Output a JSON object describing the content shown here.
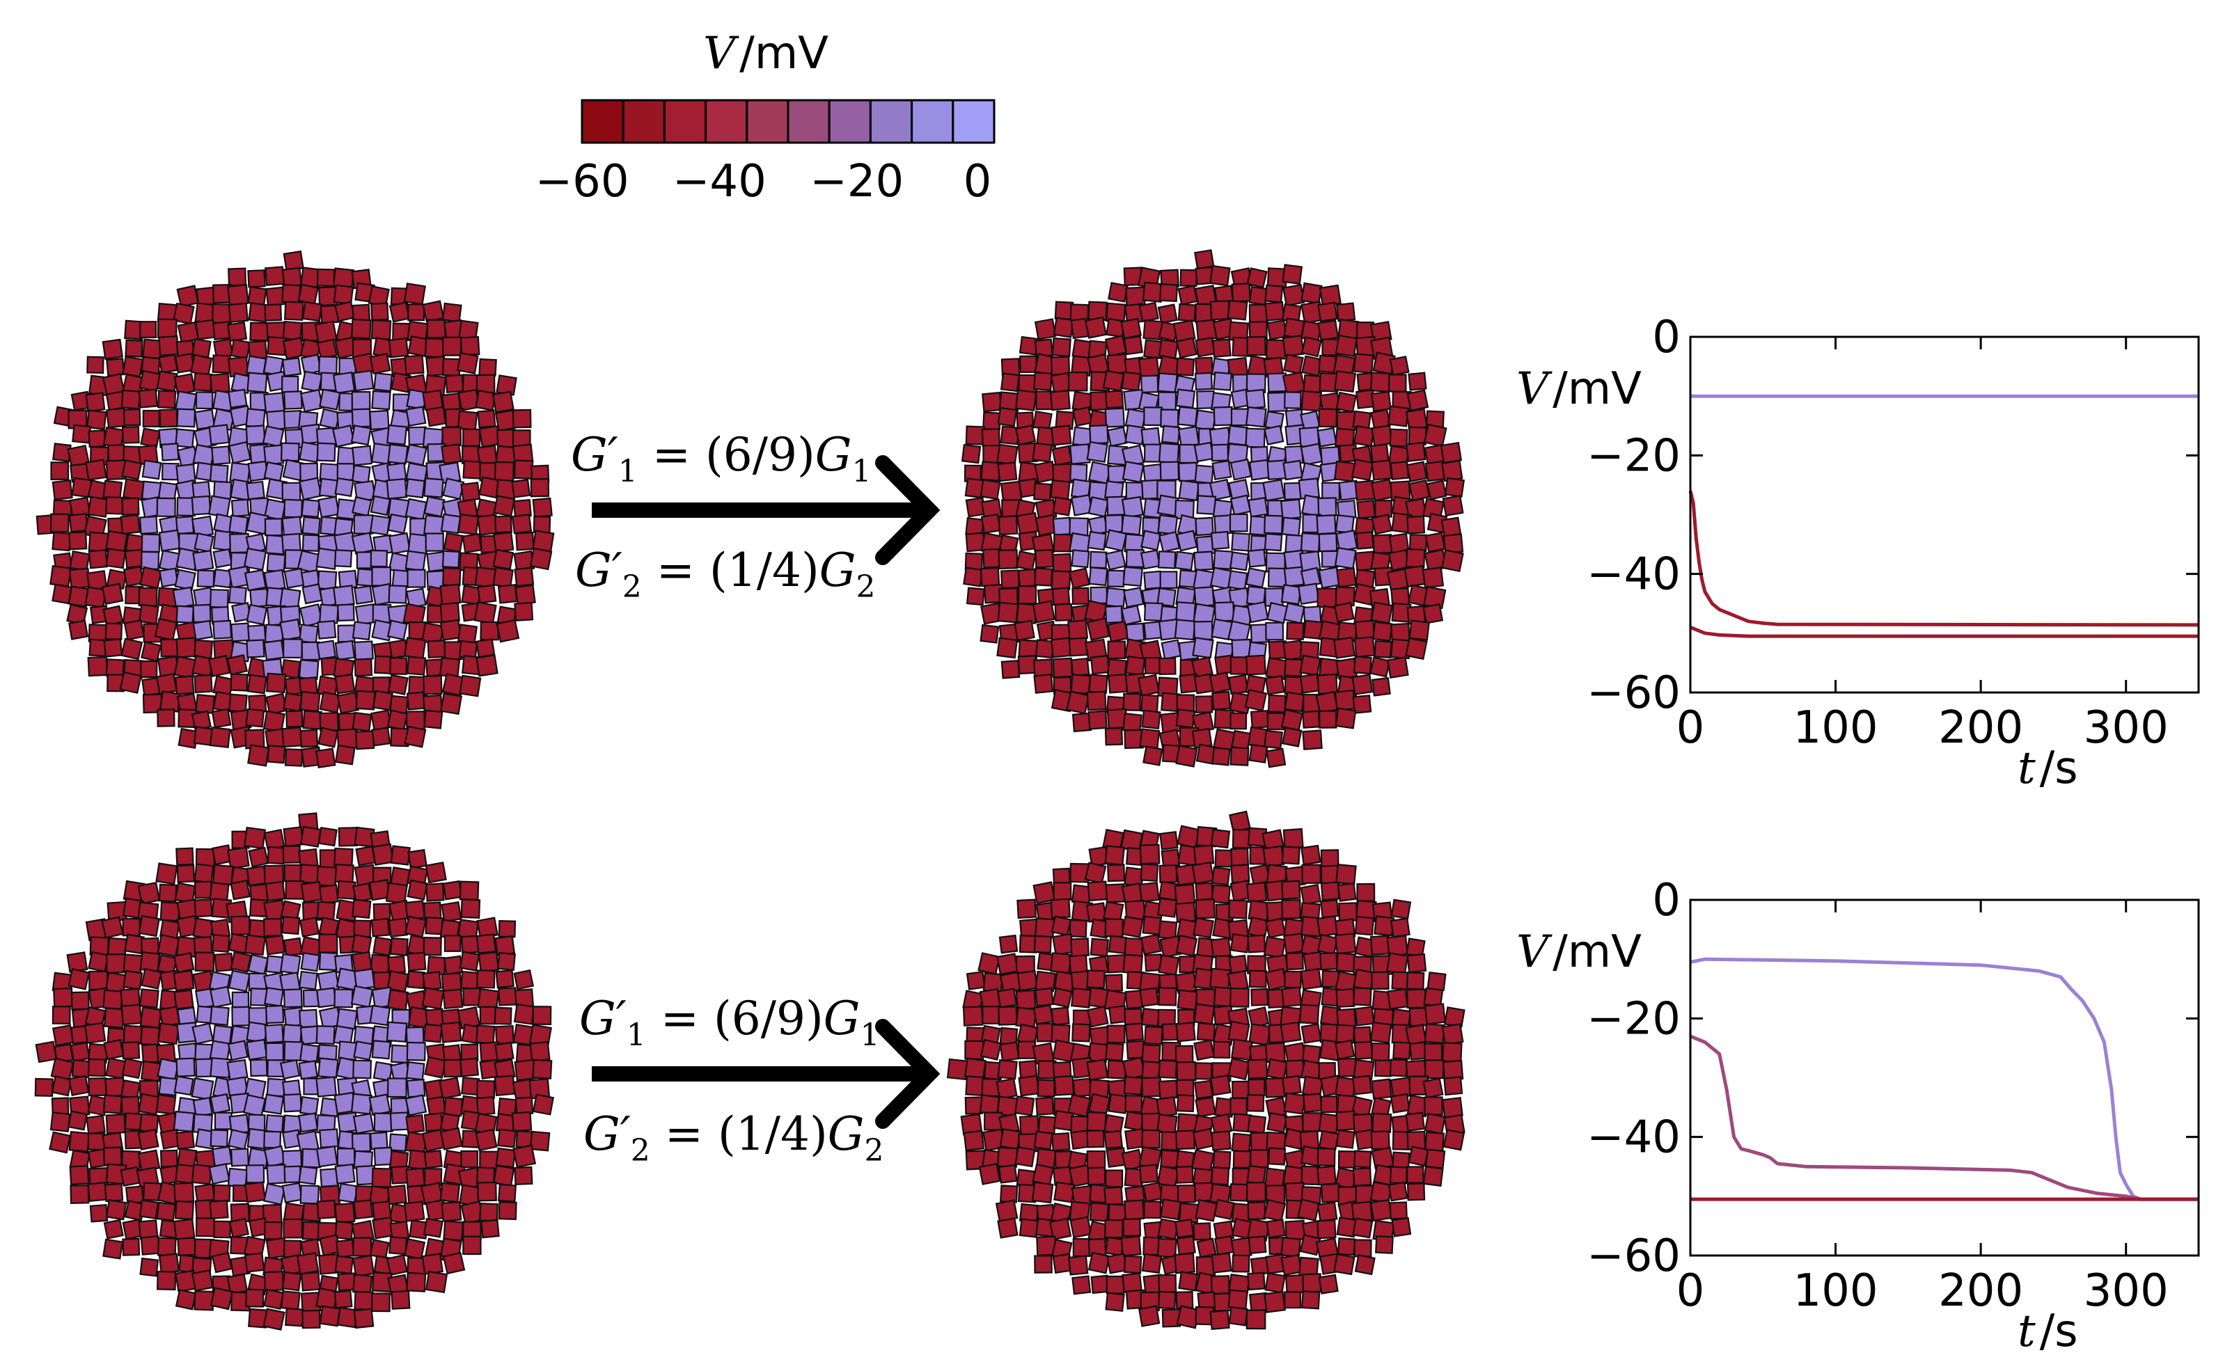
{
  "colorbar": {
    "symbol": "V",
    "unit": "/mV",
    "ticks": [
      "−60",
      "−40",
      "−20",
      "0"
    ],
    "tick_values": [
      -60,
      -40,
      -20,
      0
    ],
    "colors": [
      "#8e0a12",
      "#981522",
      "#a21e30",
      "#a82b43",
      "#a23a5c",
      "#9a4c7c",
      "#9660a4",
      "#957cc9",
      "#9a8ee2",
      "#a2a0f6"
    ]
  },
  "colors": {
    "depolarized": "#9a80d4",
    "polarized": "#9e1a2c",
    "cell_border": "#101010",
    "arrow": "#000000"
  },
  "rows": [
    {
      "equation_1": {
        "lhs": "G′",
        "lhs_sub": "1",
        "rhs": " = (6/9)",
        "rhs_var": "G",
        "rhs_sub": "1"
      },
      "equation_2": {
        "lhs": "G′",
        "lhs_sub": "2",
        "rhs": " = (1/4)",
        "rhs_var": "G",
        "rhs_sub": "2"
      },
      "before_depolarized_fraction": 0.62,
      "after_depolarized_fraction": 0.58
    },
    {
      "equation_1": {
        "lhs": "G′",
        "lhs_sub": "1",
        "rhs": " = (6/9)",
        "rhs_var": "G",
        "rhs_sub": "1"
      },
      "equation_2": {
        "lhs": "G′",
        "lhs_sub": "2",
        "rhs": " = (1/4)",
        "rhs_var": "G",
        "rhs_sub": "2"
      },
      "before_depolarized_fraction": 0.5,
      "after_depolarized_fraction": 0.0
    }
  ],
  "chart_data": [
    {
      "type": "line",
      "xlabel_symbol": "t",
      "xlabel_unit": "/s",
      "ylabel_symbol": "V",
      "ylabel_unit": "/mV",
      "xlim": [
        0,
        350
      ],
      "ylim": [
        -60,
        0
      ],
      "xticks": [
        0,
        100,
        200,
        300
      ],
      "yticks": [
        -60,
        -40,
        -20,
        0
      ],
      "xtick_labels": [
        "0",
        "100",
        "200",
        "300"
      ],
      "ytick_labels": [
        "−60",
        "−40",
        "−20",
        "0"
      ],
      "series": [
        {
          "color": "#9b80d6",
          "x": [
            0,
            350
          ],
          "y": [
            -10,
            -10
          ]
        },
        {
          "color": "#9e1a2c",
          "x": [
            0,
            2,
            4,
            6,
            8,
            10,
            15,
            20,
            30,
            40,
            50,
            60,
            350
          ],
          "y": [
            -26,
            -28,
            -34,
            -38,
            -41,
            -43,
            -45,
            -46,
            -47,
            -48,
            -48.3,
            -48.5,
            -48.6
          ]
        },
        {
          "color": "#9e1a2c",
          "x": [
            0,
            5,
            10,
            20,
            40,
            60,
            350
          ],
          "y": [
            -49,
            -49.5,
            -50,
            -50.3,
            -50.5,
            -50.5,
            -50.5
          ]
        }
      ]
    },
    {
      "type": "line",
      "xlabel_symbol": "t",
      "xlabel_unit": "/s",
      "ylabel_symbol": "V",
      "ylabel_unit": "/mV",
      "xlim": [
        0,
        350
      ],
      "ylim": [
        -60,
        0
      ],
      "xticks": [
        0,
        100,
        200,
        300
      ],
      "yticks": [
        -60,
        -40,
        -20,
        0
      ],
      "xtick_labels": [
        "0",
        "100",
        "200",
        "300"
      ],
      "ytick_labels": [
        "−60",
        "−40",
        "−20",
        "0"
      ],
      "series": [
        {
          "color": "#9b80d6",
          "x": [
            0,
            10,
            100,
            200,
            240,
            255,
            262,
            270,
            278,
            285,
            290,
            293,
            296,
            300,
            305,
            310,
            350
          ],
          "y": [
            -10.5,
            -10,
            -10.3,
            -11,
            -12,
            -13,
            -15,
            -17,
            -20,
            -24,
            -32,
            -40,
            -46,
            -48,
            -50,
            -50.5,
            -50.5
          ]
        },
        {
          "color": "#9e4a7e",
          "x": [
            0,
            10,
            20,
            25,
            30,
            35,
            40,
            50,
            55,
            60,
            80,
            150,
            220,
            235,
            245,
            260,
            280,
            300,
            310,
            350
          ],
          "y": [
            -23,
            -24,
            -26,
            -32,
            -40,
            -42,
            -42.3,
            -43,
            -43.5,
            -44.5,
            -45,
            -45.2,
            -45.6,
            -46,
            -47,
            -48.5,
            -49.5,
            -50,
            -50.5,
            -50.5
          ]
        },
        {
          "color": "#9e1a2c",
          "x": [
            0,
            350
          ],
          "y": [
            -50.5,
            -50.5
          ]
        }
      ]
    }
  ]
}
